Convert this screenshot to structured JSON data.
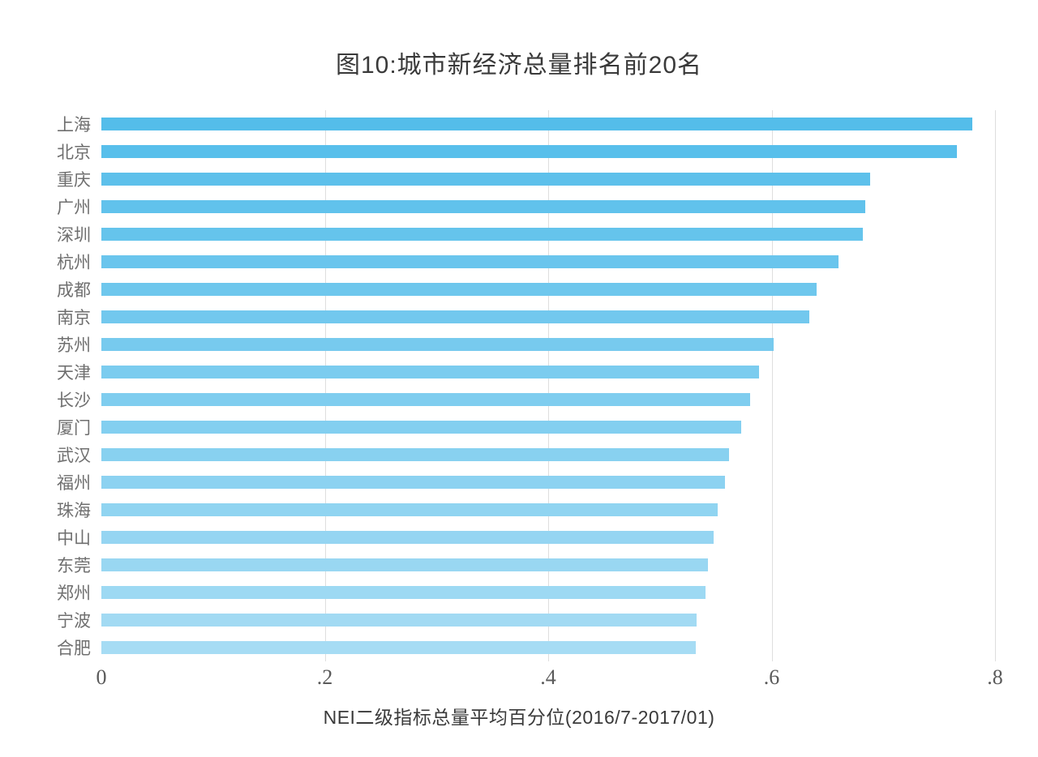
{
  "title": "图10:城市新经济总量排名前20名",
  "chart_data": {
    "type": "bar",
    "orientation": "horizontal",
    "title": "图10:城市新经济总量排名前20名",
    "xlabel": "NEI二级指标总量平均百分位(2016/7-2017/01)",
    "ylabel": "",
    "categories": [
      "上海",
      "北京",
      "重庆",
      "广州",
      "深圳",
      "杭州",
      "成都",
      "南京",
      "苏州",
      "天津",
      "长沙",
      "厦门",
      "武汉",
      "福州",
      "珠海",
      "中山",
      "东莞",
      "郑州",
      "宁波",
      "合肥"
    ],
    "values": [
      0.78,
      0.766,
      0.688,
      0.684,
      0.682,
      0.66,
      0.64,
      0.634,
      0.602,
      0.589,
      0.581,
      0.573,
      0.562,
      0.558,
      0.552,
      0.548,
      0.543,
      0.541,
      0.533,
      0.532
    ],
    "xlim": [
      0,
      0.8
    ],
    "xticks": [
      0,
      0.2,
      0.4,
      0.6,
      0.8
    ],
    "xtick_labels": [
      "0",
      ".2",
      ".4",
      ".6",
      ".8"
    ],
    "grid": "vertical-gridlines-at-ticks",
    "legend": "none",
    "bar_colors": [
      "#54bdea",
      "#58bfeb",
      "#5dc0eb",
      "#61c2ec",
      "#65c4ec",
      "#6ac5ed",
      "#6ec7ed",
      "#72c8ee",
      "#77caee",
      "#7bccef",
      "#7fcdef",
      "#83cff0",
      "#88d1f0",
      "#8cd2f1",
      "#90d4f1",
      "#95d5f2",
      "#99d7f2",
      "#9dd9f3",
      "#a2daf3",
      "#a6dcf4"
    ],
    "colors": {
      "bar_gradient_start": "#54bdea",
      "bar_gradient_end": "#a6dcf4",
      "gridline": "#dedede",
      "title_text": "#3a3a3a",
      "category_text": "#6f6f6f",
      "tick_text": "#5a5a5a",
      "background": "#ffffff"
    }
  }
}
